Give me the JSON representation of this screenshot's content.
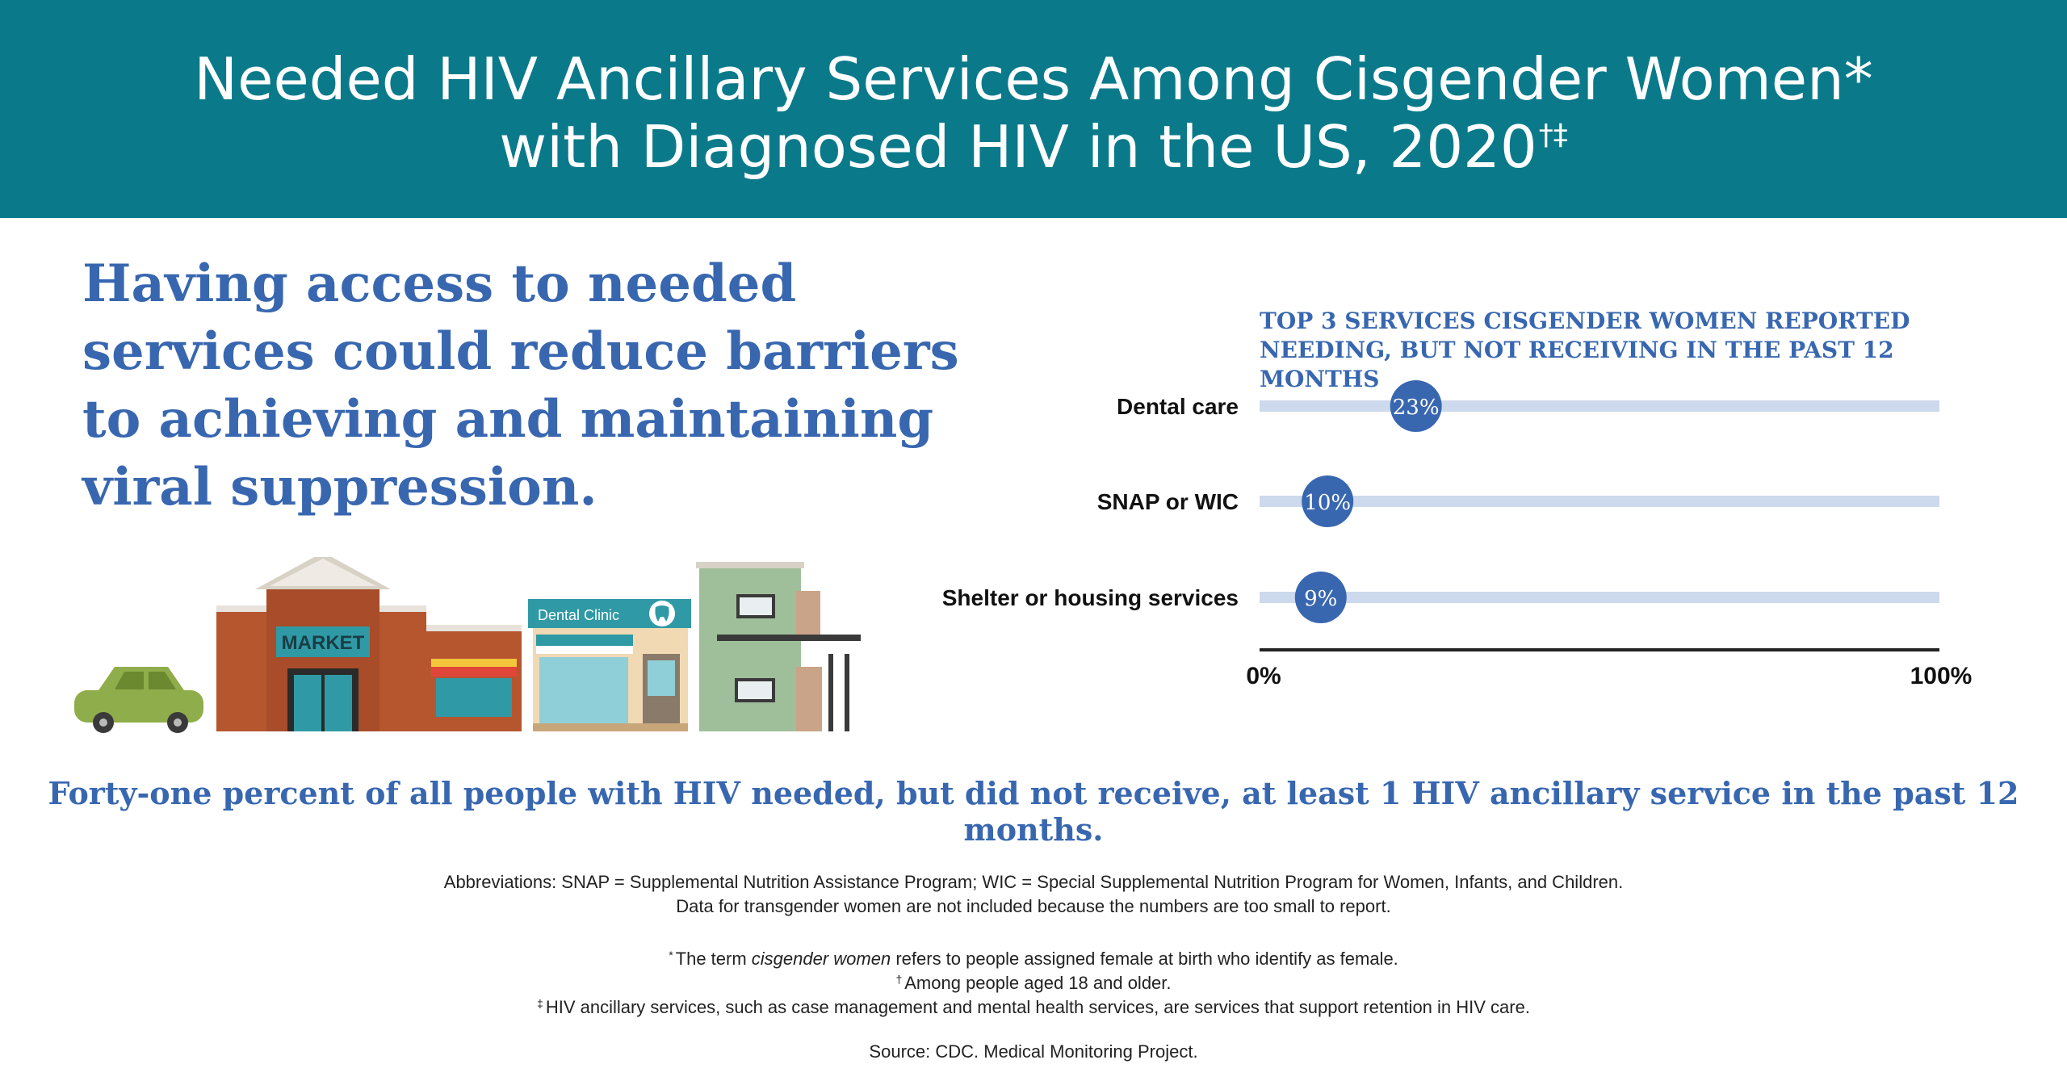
{
  "header": {
    "title_line1": "Needed HIV Ancillary Services Among Cisgender Women*",
    "title_line2": "with Diagnosed HIV in the US, 2020",
    "title_marks": "†‡",
    "background_color": "#0a7a8a"
  },
  "headline": "Having access to needed services could reduce barriers to achieving and maintaining viral suppression.",
  "illustration": {
    "market_sign": "MARKET",
    "clinic_sign": "Dental Clinic",
    "icons": [
      "car-icon",
      "market-building-icon",
      "dental-clinic-icon",
      "tooth-icon",
      "apartment-building-icon"
    ]
  },
  "chart_data": {
    "type": "bar",
    "title": "TOP 3 SERVICES CISGENDER WOMEN REPORTED NEEDING, BUT NOT RECEIVING IN THE PAST 12 MONTHS",
    "categories": [
      "Dental care",
      "SNAP or WIC",
      "Shelter or housing services"
    ],
    "values": [
      23,
      10,
      9
    ],
    "value_labels": [
      "23%",
      "10%",
      "9%"
    ],
    "xlim": [
      0,
      100
    ],
    "x_tick_labels": [
      "0%",
      "100%"
    ],
    "colors": {
      "track": "#cdd9ec",
      "marker": "#3867b0",
      "axis": "#222222"
    }
  },
  "summary": "Forty-one percent of all people with HIV needed, but did not receive, at least 1 HIV ancillary service in the past 12 months.",
  "notes": {
    "abbrev_label": "Abbreviations",
    "abbrev_text": ": SNAP = Supplemental Nutrition Assistance Program; WIC = Special Supplemental Nutrition Program for Women, Infants, and Children.",
    "transgender_note": "Data for transgender women are not included because the numbers are too small to report.",
    "fn1_symbol": "*",
    "fn1_pre": "The term ",
    "fn1_italic": "cisgender women",
    "fn1_post": " refers to people assigned female at birth who identify as female.",
    "fn2_symbol": "†",
    "fn2_text": "Among people aged 18 and older.",
    "fn3_symbol": "‡",
    "fn3_text": "HIV ancillary services, such as case management and mental health services, are services that support retention in HIV care.",
    "source": "Source: CDC. Medical Monitoring Project."
  }
}
